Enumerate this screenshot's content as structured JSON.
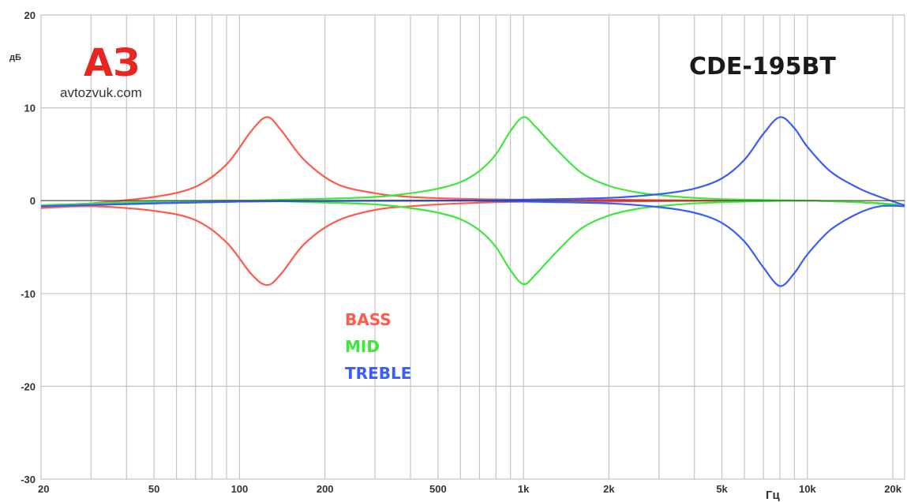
{
  "logo": {
    "mark": "АЗ",
    "site": "avtozvuk.com",
    "mark_color": "#e8251f"
  },
  "chart_data": {
    "type": "line",
    "title": "CDE-195BT",
    "xlabel": "Гц",
    "ylabel": "дБ",
    "x_scale": "log",
    "xlim": [
      20,
      22000
    ],
    "ylim": [
      -30,
      20
    ],
    "grid": true,
    "legend_position": "center",
    "x_ticks": [
      {
        "value": 20,
        "label": "20"
      },
      {
        "value": 50,
        "label": "50"
      },
      {
        "value": 100,
        "label": "100"
      },
      {
        "value": 200,
        "label": "200"
      },
      {
        "value": 500,
        "label": "500"
      },
      {
        "value": 1000,
        "label": "1k"
      },
      {
        "value": 2000,
        "label": "2k"
      },
      {
        "value": 5000,
        "label": "5k"
      },
      {
        "value": 10000,
        "label": "10k"
      },
      {
        "value": 20000,
        "label": "20k"
      }
    ],
    "x_grid": [
      20,
      30,
      40,
      50,
      60,
      70,
      80,
      90,
      100,
      200,
      300,
      400,
      500,
      600,
      700,
      800,
      900,
      1000,
      2000,
      3000,
      4000,
      5000,
      6000,
      7000,
      8000,
      9000,
      10000,
      20000
    ],
    "y_ticks": [
      {
        "value": 20,
        "label": "20"
      },
      {
        "value": 10,
        "label": "10"
      },
      {
        "value": 0,
        "label": "0"
      },
      {
        "value": -10,
        "label": "-10"
      },
      {
        "value": -20,
        "label": "-20"
      },
      {
        "value": -30,
        "label": "-30"
      }
    ],
    "series": [
      {
        "name": "BASS",
        "color": "#ff5a4a",
        "x": [
          20,
          30,
          50,
          70,
          90,
          110,
          125,
          140,
          170,
          220,
          300,
          400,
          600,
          1000,
          2000,
          5000,
          10000,
          16000,
          22000
        ],
        "upper": [
          -0.8,
          -0.3,
          0.4,
          1.5,
          3.9,
          7.5,
          9.0,
          7.6,
          4.3,
          1.8,
          0.8,
          0.4,
          0.2,
          0.1,
          0.1,
          0.0,
          0.0,
          -0.2,
          -0.5
        ],
        "lower": [
          -0.8,
          -0.6,
          -1.1,
          -2.1,
          -4.5,
          -7.9,
          -9.1,
          -7.9,
          -4.6,
          -2.2,
          -1.0,
          -0.6,
          -0.3,
          -0.1,
          -0.1,
          0.0,
          0.0,
          -0.2,
          -0.5
        ]
      },
      {
        "name": "MID",
        "color": "#3ee83a",
        "x": [
          20,
          50,
          100,
          200,
          300,
          400,
          500,
          600,
          700,
          800,
          900,
          1000,
          1100,
          1300,
          1600,
          2000,
          2500,
          3000,
          4000,
          6000,
          10000,
          16000,
          22000
        ],
        "upper": [
          -0.5,
          -0.1,
          0.0,
          0.2,
          0.4,
          0.8,
          1.3,
          2.0,
          3.2,
          5.0,
          7.5,
          9.0,
          8.0,
          5.6,
          3.0,
          1.6,
          0.9,
          0.6,
          0.3,
          0.1,
          0.0,
          -0.2,
          -0.5
        ],
        "lower": [
          -0.5,
          -0.1,
          0.0,
          -0.2,
          -0.4,
          -0.8,
          -1.3,
          -2.0,
          -3.2,
          -5.0,
          -7.5,
          -9.0,
          -8.0,
          -5.6,
          -3.0,
          -1.6,
          -0.9,
          -0.6,
          -0.3,
          -0.1,
          0.0,
          -0.2,
          -0.5
        ]
      },
      {
        "name": "TREBLE",
        "color": "#3a5cff",
        "x": [
          20,
          100,
          500,
          1000,
          2000,
          3000,
          4000,
          5000,
          6000,
          7000,
          8000,
          9000,
          10000,
          12000,
          15000,
          18000,
          22000
        ],
        "upper": [
          -0.6,
          -0.1,
          0.0,
          0.1,
          0.3,
          0.7,
          1.3,
          2.4,
          4.4,
          7.2,
          9.0,
          7.8,
          5.8,
          3.2,
          1.4,
          0.4,
          -0.5
        ],
        "lower": [
          -0.6,
          -0.1,
          0.0,
          -0.1,
          -0.3,
          -0.7,
          -1.3,
          -2.4,
          -4.4,
          -7.2,
          -9.2,
          -7.8,
          -5.8,
          -3.2,
          -1.4,
          -0.6,
          -0.6
        ]
      }
    ]
  }
}
